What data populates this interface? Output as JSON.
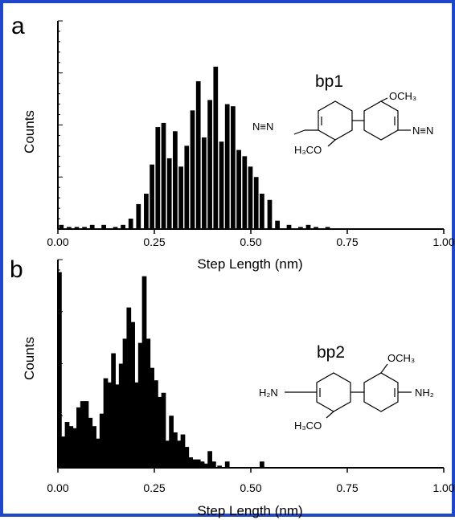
{
  "colors": {
    "border": "#1f45c8",
    "bars": "#000000"
  },
  "chart_data": [
    {
      "type": "bar",
      "panel_label": "a",
      "molecule_label": "bp1",
      "title": "",
      "xlabel": "Step Length (nm)",
      "ylabel": "Counts",
      "xlim": [
        0.0,
        1.0
      ],
      "ylim": [
        0,
        100
      ],
      "x_ticks": [
        "0.00",
        "0.25",
        "0.50",
        "0.75",
        "1.00"
      ],
      "bin_width": 0.014,
      "x": [
        0.01,
        0.03,
        0.05,
        0.07,
        0.09,
        0.12,
        0.15,
        0.17,
        0.19,
        0.21,
        0.23,
        0.245,
        0.26,
        0.275,
        0.29,
        0.305,
        0.32,
        0.335,
        0.35,
        0.365,
        0.38,
        0.395,
        0.41,
        0.425,
        0.44,
        0.455,
        0.47,
        0.485,
        0.5,
        0.515,
        0.53,
        0.55,
        0.57,
        0.6,
        0.63,
        0.65,
        0.67,
        0.7
      ],
      "values": [
        2,
        1,
        1,
        1,
        2,
        2,
        1,
        2,
        5,
        12,
        17,
        31,
        49,
        51,
        34,
        47,
        30,
        40,
        57,
        71,
        44,
        62,
        78,
        42,
        60,
        59,
        38,
        35,
        30,
        25,
        17,
        14,
        4,
        2,
        1,
        2,
        1,
        1
      ]
    },
    {
      "type": "bar",
      "panel_label": "b",
      "molecule_label": "bp2",
      "title": "",
      "xlabel": "Step Length (nm)",
      "ylabel": "Counts",
      "xlim": [
        0.0,
        1.0
      ],
      "ylim": [
        0,
        100
      ],
      "x_ticks": [
        "0.00",
        "0.25",
        "0.50",
        "0.75",
        "1.00"
      ],
      "bin_width": 0.014,
      "x": [
        0.005,
        0.015,
        0.025,
        0.035,
        0.045,
        0.055,
        0.065,
        0.075,
        0.085,
        0.095,
        0.105,
        0.115,
        0.125,
        0.135,
        0.145,
        0.155,
        0.165,
        0.175,
        0.185,
        0.195,
        0.205,
        0.215,
        0.225,
        0.235,
        0.245,
        0.255,
        0.265,
        0.275,
        0.285,
        0.295,
        0.305,
        0.315,
        0.325,
        0.335,
        0.345,
        0.355,
        0.365,
        0.375,
        0.385,
        0.395,
        0.405,
        0.42,
        0.44,
        0.53
      ],
      "values": [
        94,
        15,
        22,
        20,
        19,
        29,
        32,
        32,
        24,
        20,
        14,
        26,
        43,
        41,
        55,
        40,
        50,
        62,
        77,
        70,
        41,
        60,
        92,
        62,
        48,
        42,
        34,
        36,
        13,
        25,
        17,
        13,
        16,
        10,
        5,
        4,
        4,
        3,
        2,
        8,
        3,
        1,
        3,
        3
      ]
    }
  ]
}
